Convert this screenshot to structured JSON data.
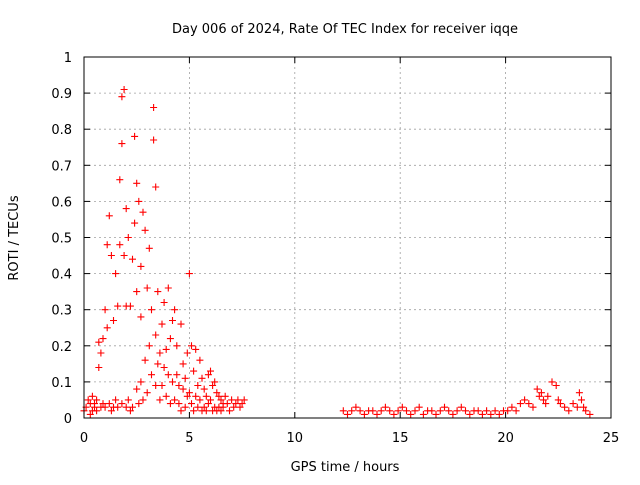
{
  "chart_data": {
    "type": "scatter",
    "title": "Day 006 of 2024, Rate Of TEC Index for receiver iqqe",
    "xlabel": "GPS time / hours",
    "ylabel": "ROTI / TECUs",
    "xlim": [
      0,
      25
    ],
    "ylim": [
      0,
      1
    ],
    "xticks": [
      0,
      5,
      10,
      15,
      20,
      25
    ],
    "xtick_labels": [
      "0",
      "5",
      "10",
      "15",
      "20",
      "25"
    ],
    "yticks": [
      0,
      0.1,
      0.2,
      0.3,
      0.4,
      0.5,
      0.6,
      0.7,
      0.8,
      0.9,
      1
    ],
    "ytick_labels": [
      "0",
      "0.1",
      "0.2",
      "0.3",
      "0.4",
      "0.5",
      "0.6",
      "0.7",
      "0.8",
      "0.9",
      "1"
    ],
    "grid": true,
    "legend": "none",
    "marker": "plus",
    "color": "#ff0000",
    "series": [
      {
        "x": [
          0.0,
          0.1,
          0.2,
          0.3,
          0.3,
          0.4,
          0.4,
          0.5,
          0.5,
          0.6,
          0.6,
          0.7,
          0.7,
          0.8,
          0.8,
          0.9,
          0.9,
          1.0,
          1.0,
          1.1,
          1.1,
          1.2,
          1.2,
          1.3,
          1.3,
          1.4,
          1.4,
          1.5,
          1.5,
          1.6,
          1.6,
          1.7,
          1.7,
          1.8,
          1.8,
          1.8,
          1.9,
          1.9,
          2.0,
          2.0,
          2.0,
          2.1,
          2.1,
          2.2,
          2.2,
          2.3,
          2.3,
          2.4,
          2.4,
          2.5,
          2.5,
          2.5,
          2.6,
          2.6,
          2.7,
          2.7,
          2.7,
          2.8,
          2.8,
          2.9,
          2.9,
          3.0,
          3.0,
          3.1,
          3.1,
          3.2,
          3.2,
          3.3,
          3.3,
          3.4,
          3.4,
          3.4,
          3.5,
          3.5,
          3.6,
          3.6,
          3.7,
          3.7,
          3.8,
          3.8,
          3.9,
          3.9,
          4.0,
          4.0,
          4.1,
          4.1,
          4.2,
          4.2,
          4.3,
          4.3,
          4.4,
          4.4,
          4.5,
          4.5,
          4.6,
          4.6,
          4.7,
          4.7,
          4.8,
          4.8,
          4.9,
          4.9,
          5.0,
          5.0,
          5.1,
          5.1,
          5.2,
          5.2,
          5.3,
          5.3,
          5.4,
          5.4,
          5.5,
          5.5,
          5.6,
          5.6,
          5.7,
          5.7,
          5.8,
          5.8,
          5.9,
          5.9,
          6.0,
          6.0,
          6.1,
          6.1,
          6.2,
          6.2,
          6.3,
          6.3,
          6.4,
          6.4,
          6.5,
          6.5,
          6.6,
          6.6,
          6.7,
          6.8,
          6.9,
          7.0,
          7.1,
          7.2,
          7.3,
          7.4,
          7.5,
          7.6,
          12.3,
          12.5,
          12.7,
          12.9,
          13.1,
          13.3,
          13.5,
          13.7,
          13.9,
          14.1,
          14.3,
          14.5,
          14.7,
          14.9,
          15.1,
          15.3,
          15.5,
          15.7,
          15.9,
          16.1,
          16.3,
          16.5,
          16.7,
          16.9,
          17.1,
          17.3,
          17.5,
          17.7,
          17.9,
          18.1,
          18.3,
          18.5,
          18.7,
          18.9,
          19.1,
          19.3,
          19.5,
          19.7,
          19.9,
          20.1,
          20.3,
          20.5,
          20.7,
          20.9,
          21.1,
          21.3,
          21.5,
          21.6,
          21.7,
          21.8,
          21.9,
          22.0,
          22.2,
          22.4,
          22.5,
          22.6,
          22.8,
          23.0,
          23.2,
          23.4,
          23.5,
          23.6,
          23.7,
          23.8,
          24.0
        ],
        "y": [
          0.02,
          0.03,
          0.05,
          0.04,
          0.01,
          0.06,
          0.02,
          0.03,
          0.04,
          0.02,
          0.05,
          0.14,
          0.21,
          0.03,
          0.18,
          0.04,
          0.22,
          0.03,
          0.3,
          0.25,
          0.48,
          0.56,
          0.04,
          0.45,
          0.02,
          0.03,
          0.27,
          0.4,
          0.05,
          0.31,
          0.03,
          0.48,
          0.66,
          0.89,
          0.76,
          0.04,
          0.91,
          0.45,
          0.03,
          0.58,
          0.31,
          0.05,
          0.5,
          0.31,
          0.02,
          0.44,
          0.03,
          0.78,
          0.54,
          0.65,
          0.08,
          0.35,
          0.6,
          0.04,
          0.42,
          0.1,
          0.28,
          0.57,
          0.05,
          0.52,
          0.16,
          0.36,
          0.07,
          0.47,
          0.2,
          0.12,
          0.3,
          0.86,
          0.77,
          0.64,
          0.23,
          0.09,
          0.35,
          0.15,
          0.18,
          0.05,
          0.26,
          0.09,
          0.32,
          0.14,
          0.19,
          0.06,
          0.36,
          0.12,
          0.22,
          0.04,
          0.27,
          0.1,
          0.3,
          0.05,
          0.12,
          0.2,
          0.04,
          0.09,
          0.26,
          0.02,
          0.15,
          0.08,
          0.11,
          0.03,
          0.18,
          0.06,
          0.4,
          0.07,
          0.2,
          0.04,
          0.13,
          0.02,
          0.19,
          0.06,
          0.09,
          0.03,
          0.16,
          0.05,
          0.11,
          0.02,
          0.08,
          0.03,
          0.06,
          0.02,
          0.12,
          0.04,
          0.13,
          0.05,
          0.09,
          0.02,
          0.1,
          0.03,
          0.07,
          0.02,
          0.06,
          0.03,
          0.05,
          0.02,
          0.04,
          0.03,
          0.06,
          0.04,
          0.02,
          0.05,
          0.03,
          0.04,
          0.05,
          0.03,
          0.04,
          0.05,
          0.02,
          0.01,
          0.02,
          0.03,
          0.02,
          0.01,
          0.02,
          0.02,
          0.01,
          0.02,
          0.03,
          0.02,
          0.01,
          0.02,
          0.03,
          0.02,
          0.01,
          0.02,
          0.03,
          0.01,
          0.02,
          0.02,
          0.01,
          0.02,
          0.03,
          0.02,
          0.01,
          0.02,
          0.03,
          0.02,
          0.01,
          0.02,
          0.02,
          0.01,
          0.02,
          0.01,
          0.02,
          0.01,
          0.02,
          0.02,
          0.03,
          0.02,
          0.04,
          0.05,
          0.04,
          0.03,
          0.08,
          0.06,
          0.07,
          0.05,
          0.04,
          0.06,
          0.1,
          0.09,
          0.05,
          0.04,
          0.03,
          0.02,
          0.04,
          0.03,
          0.07,
          0.05,
          0.03,
          0.02,
          0.01
        ]
      }
    ]
  }
}
